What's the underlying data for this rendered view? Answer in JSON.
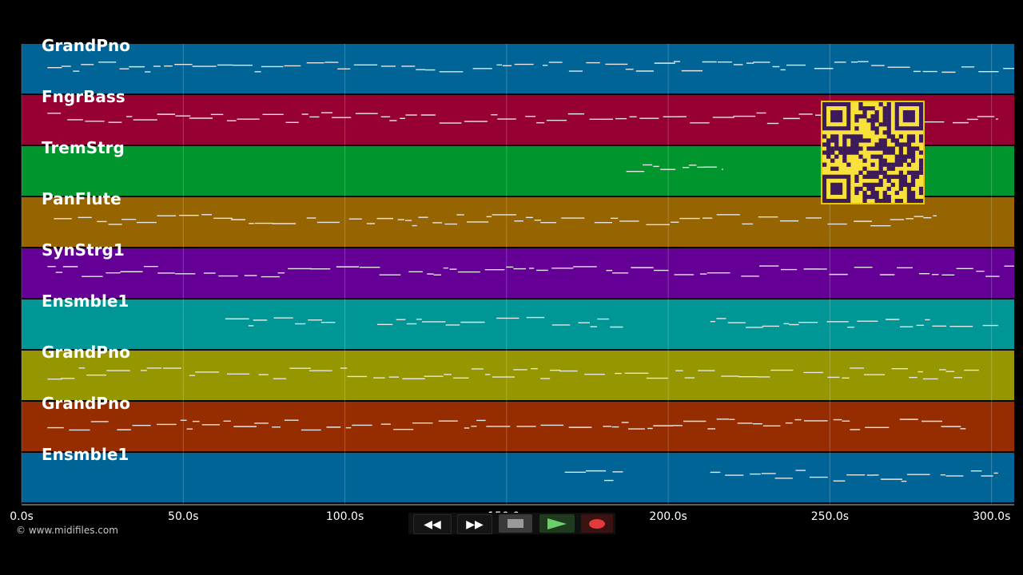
{
  "tracks": [
    {
      "name": "GrandPno",
      "color": "#006496"
    },
    {
      "name": "FngrBass",
      "color": "#960032"
    },
    {
      "name": "TremStrg",
      "color": "#00962d"
    },
    {
      "name": "PanFlute",
      "color": "#966400"
    },
    {
      "name": "SynStrg1",
      "color": "#640096"
    },
    {
      "name": "Ensmble1",
      "color": "#009696"
    },
    {
      "name": "GrandPno",
      "color": "#969600"
    },
    {
      "name": "GrandPno",
      "color": "#962d00"
    },
    {
      "name": "Ensmble1",
      "color": "#006496"
    }
  ],
  "timeline": {
    "unit": "s",
    "range": [
      0,
      307
    ],
    "ticks": [
      "0.0s",
      "50.0s",
      "100.0s",
      "150.0s",
      "200.0s",
      "250.0s",
      "300.0s"
    ],
    "tick_values": [
      0,
      50,
      100,
      150,
      200,
      250,
      300
    ]
  },
  "note_coverage": [
    [
      [
        8,
        307
      ]
    ],
    [
      [
        8,
        302
      ]
    ],
    [
      [
        187,
        217
      ]
    ],
    [
      [
        10,
        283
      ]
    ],
    [
      [
        8,
        307
      ]
    ],
    [
      [
        63,
        97
      ],
      [
        110,
        186
      ],
      [
        213,
        302
      ]
    ],
    [
      [
        8,
        297
      ]
    ],
    [
      [
        8,
        292
      ]
    ],
    [
      [
        168,
        186
      ],
      [
        213,
        302
      ]
    ]
  ],
  "copyright": "© www.midifiles.com",
  "transport": {
    "rewind_icon": "rewind-icon",
    "fast_forward_icon": "fast-forward-icon",
    "stop_icon": "stop-icon",
    "play_icon": "play-icon",
    "record_icon": "record-icon"
  },
  "qr_code_icon": "qr-code-icon"
}
